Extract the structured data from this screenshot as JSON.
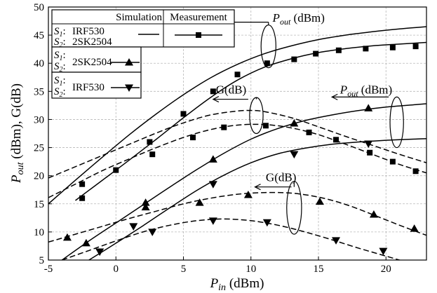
{
  "chart_data": {
    "type": "line",
    "xlabel": {
      "main": "P",
      "sub": "in",
      "unit": " (dBm)"
    },
    "ylabel": {
      "main": "P",
      "sub": "out",
      "rest": " (dBm), G(dB)"
    },
    "xlim": [
      -5,
      23
    ],
    "ylim": [
      5,
      50
    ],
    "xticks": [
      -5,
      0,
      5,
      10,
      15,
      20
    ],
    "yticks": [
      5,
      10,
      15,
      20,
      25,
      30,
      35,
      40,
      45,
      50
    ],
    "grid": true,
    "legend": {
      "header_simulation": "Simulation",
      "header_measurement": "Measurement",
      "rows": [
        {
          "s1_label": "S",
          "s1_sub": "1",
          "s1_colon": ":",
          "s1_device": "IRF530",
          "s2_label": "S",
          "s2_sub": "2",
          "s2_colon": ":",
          "s2_device": "2SK2504",
          "marker": "square"
        },
        {
          "s1_label": "S",
          "s1_sub": "1",
          "s1_colon": ":",
          "s1_device": "2SK2504",
          "s2_label": "S",
          "s2_sub": "2",
          "s2_colon": ":",
          "s2_device": "",
          "marker": "triangle-up"
        },
        {
          "s1_label": "S",
          "s1_sub": "1",
          "s1_colon": ":",
          "s1_device": "IRF530",
          "s2_label": "S",
          "s2_sub": "2",
          "s2_colon": ":",
          "s2_device": "",
          "marker": "triangle-down"
        }
      ]
    },
    "annotations": [
      {
        "kind": "pout",
        "text_main": "P",
        "text_sub": "out",
        "text_rest": " (dBm)",
        "arrow_to_x": 7.3,
        "arrow_to_y": 47.3,
        "arrow_from_x": 11.3,
        "label_x": 11.6,
        "label_y": 47.4,
        "ellipse_cx": 11.3,
        "ellipse_cy": 43.0,
        "ellipse_rx": 0.55,
        "ellipse_ry": 3.8
      },
      {
        "kind": "g",
        "text": "G(dB)",
        "arrow_to_x": 7.2,
        "arrow_to_y": 33.6,
        "arrow_from_x": 9.8,
        "label_x": 7.4,
        "label_y": 34.6,
        "ellipse_cx": 10.4,
        "ellipse_cy": 30.7,
        "ellipse_rx": 0.5,
        "ellipse_ry": 3.2
      },
      {
        "kind": "pout",
        "text_main": "P",
        "text_sub": "out",
        "text_rest": " (dBm)",
        "arrow_to_x": 16.0,
        "arrow_to_y": 34.0,
        "arrow_from_x": 20.2,
        "label_x": 16.6,
        "label_y": 34.6,
        "ellipse_cx": 20.8,
        "ellipse_cy": 29.5,
        "ellipse_rx": 0.5,
        "ellipse_ry": 4.5
      },
      {
        "kind": "g",
        "text": "G(dB)",
        "arrow_to_x": 10.3,
        "arrow_to_y": 18.0,
        "arrow_from_x": 13.0,
        "label_x": 11.1,
        "label_y": 19.0,
        "ellipse_cx": 13.2,
        "ellipse_cy": 14.3,
        "ellipse_rx": 0.55,
        "ellipse_ry": 4.7
      }
    ],
    "simulation": [
      {
        "name": "Pout S1:IRF530 S2:2SK2504",
        "style": "solid",
        "x": [
          -5,
          -3,
          -1,
          1,
          3,
          5,
          7,
          9,
          11,
          13,
          15,
          17,
          19,
          21,
          23
        ],
        "y": [
          15,
          19.2,
          23.3,
          27.3,
          31.0,
          34.4,
          37.4,
          39.8,
          41.7,
          43.1,
          44.2,
          45.0,
          45.6,
          46.1,
          46.5
        ]
      },
      {
        "name": "Pout S1:IRF530 S2:2SK2504 (measured fit)",
        "style": "solid",
        "x": [
          -3,
          -1,
          1,
          3,
          5,
          7,
          9,
          11,
          13,
          15,
          17,
          19,
          21,
          23
        ],
        "y": [
          15.6,
          19.2,
          22.8,
          26.5,
          30.3,
          33.9,
          37.0,
          39.3,
          40.8,
          41.9,
          42.6,
          43.1,
          43.4,
          43.7
        ]
      },
      {
        "name": "Pout S1:2SK2504",
        "style": "solid",
        "x": [
          -4,
          -2,
          0,
          2,
          4,
          6,
          8,
          10,
          12,
          14,
          16,
          18,
          20,
          22,
          23
        ],
        "y": [
          5,
          8.4,
          11.6,
          14.8,
          18.0,
          21.1,
          24.0,
          26.5,
          28.4,
          29.8,
          30.8,
          31.6,
          32.2,
          32.6,
          32.8
        ]
      },
      {
        "name": "Pout S1:IRF530",
        "style": "solid",
        "x": [
          -2,
          0,
          2,
          4,
          6,
          8,
          10,
          12,
          14,
          16,
          18,
          20,
          22,
          23
        ],
        "y": [
          5,
          8.0,
          11.1,
          14.3,
          17.4,
          20.1,
          22.3,
          23.9,
          24.9,
          25.6,
          26.0,
          26.3,
          26.5,
          26.6
        ]
      },
      {
        "name": "G S1:IRF530 S2:2SK2504",
        "style": "dashed",
        "x": [
          -5,
          -3,
          -1,
          1,
          3,
          5,
          7,
          9,
          10,
          11,
          13,
          15,
          17,
          19,
          21,
          23
        ],
        "y": [
          19.6,
          21.6,
          23.6,
          25.6,
          27.6,
          29.4,
          30.8,
          31.5,
          31.6,
          31.4,
          30.3,
          28.7,
          27.0,
          25.4,
          23.8,
          22.3
        ]
      },
      {
        "name": "G S1:IRF530 S2:2SK2504 (measured fit)",
        "style": "dashed",
        "x": [
          -5,
          -3,
          -1,
          1,
          3,
          5,
          7,
          9,
          11,
          13,
          15,
          17,
          19,
          21,
          23
        ],
        "y": [
          16.1,
          18.5,
          20.9,
          23.0,
          25.0,
          26.8,
          28.2,
          29.0,
          29.1,
          28.5,
          27.3,
          25.6,
          23.8,
          22.0,
          20.5
        ]
      },
      {
        "name": "G S1:2SK2504",
        "style": "dashed",
        "x": [
          -5,
          -3,
          -1,
          1,
          3,
          5,
          7,
          9,
          11,
          13,
          15,
          17,
          19,
          21,
          23
        ],
        "y": [
          8.2,
          9.6,
          11.0,
          12.4,
          13.7,
          15.0,
          16.0,
          16.7,
          17.0,
          16.9,
          16.2,
          14.9,
          13.1,
          11.2,
          9.4
        ]
      },
      {
        "name": "G S1:IRF530",
        "style": "dashed",
        "x": [
          -4,
          -2,
          0,
          2,
          4,
          6,
          8,
          10,
          12,
          14,
          16,
          18,
          20,
          22
        ],
        "y": [
          5,
          6.7,
          8.4,
          10.0,
          11.2,
          12.0,
          12.3,
          12.0,
          11.2,
          10.0,
          8.6,
          7.1,
          5.7,
          4.3
        ]
      }
    ],
    "measurement": [
      {
        "name": "Pout S1:IRF530 S2:2SK2504",
        "marker": "square",
        "x": [
          -2.5,
          2.5,
          5,
          7.2,
          9,
          11.2,
          13.2,
          14.8,
          16.5,
          18.5,
          20.5,
          22.2
        ],
        "y": [
          16.0,
          26.0,
          31.0,
          35.0,
          38.0,
          40.0,
          40.7,
          41.7,
          42.3,
          42.6,
          42.8,
          43.0
        ]
      },
      {
        "name": "G S1:IRF530 S2:2SK2504",
        "marker": "square",
        "x": [
          -2.5,
          0,
          2.7,
          5.7,
          8,
          11.1,
          14.3,
          16.3,
          18.8,
          20.5,
          22.2
        ],
        "y": [
          18.5,
          21.0,
          23.8,
          26.8,
          28.6,
          28.9,
          27.7,
          26.4,
          24.1,
          22.5,
          20.8
        ]
      },
      {
        "name": "Pout S1:2SK2504",
        "marker": "triangle-up",
        "x": [
          2.2,
          7.2,
          13.2,
          18.7
        ],
        "y": [
          15.2,
          22.9,
          29.3,
          32.0
        ]
      },
      {
        "name": "G S1:2SK2504",
        "marker": "triangle-up",
        "x": [
          -3.6,
          -2.2,
          2.2,
          6.2,
          9.8,
          15.1,
          19.1,
          22.1
        ],
        "y": [
          9.0,
          8.0,
          14.4,
          15.2,
          16.6,
          15.4,
          13.1,
          10.6
        ]
      },
      {
        "name": "Pout S1:IRF530",
        "marker": "triangle-down",
        "x": [
          -1.2,
          1.3,
          7.2,
          13.2,
          18.7
        ],
        "y": [
          6.5,
          11.0,
          18.5,
          23.8,
          25.7
        ]
      },
      {
        "name": "G S1:IRF530",
        "marker": "triangle-down",
        "x": [
          -1.2,
          2.7,
          7.2,
          11.2,
          16.3,
          19.8
        ],
        "y": [
          6.5,
          10.0,
          12.0,
          11.7,
          8.5,
          6.6
        ]
      }
    ]
  }
}
